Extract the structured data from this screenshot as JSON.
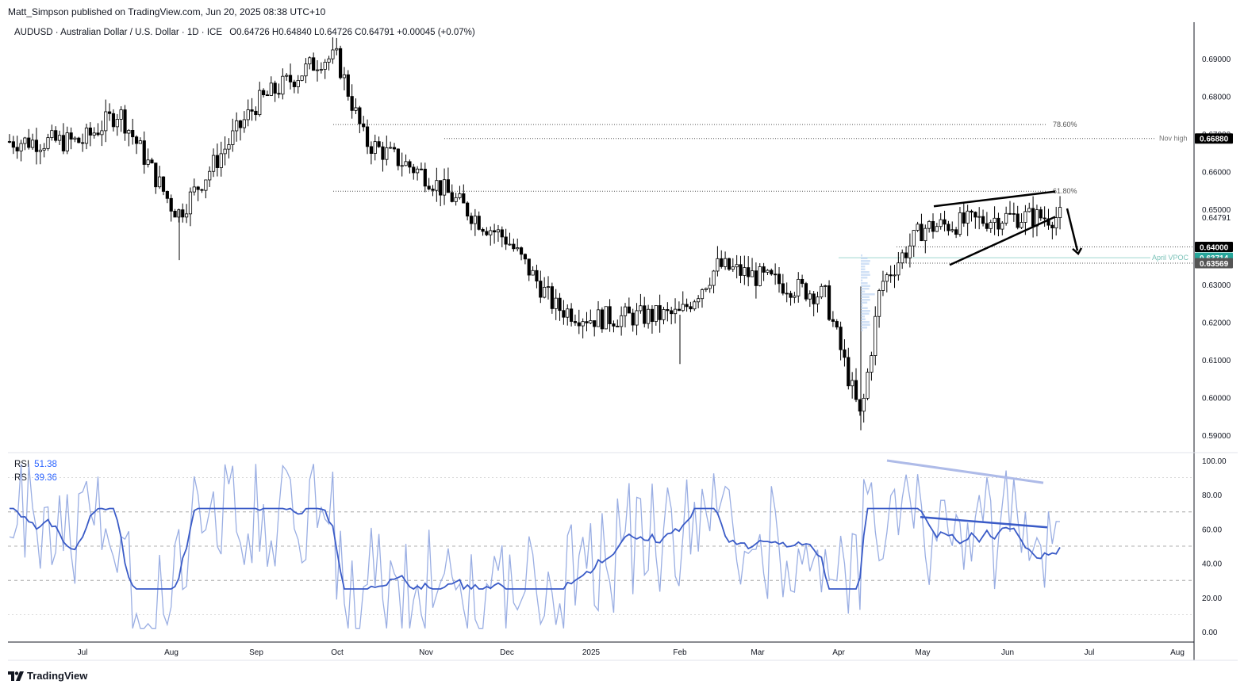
{
  "header": {
    "published": "Matt_Simpson published on TradingView.com, Jun 20, 2025 08:38 UTC+10",
    "symbol": "AUDUSD · Australian Dollar / U.S. Dollar · 1D · ICE",
    "ohlc": "O0.64726  H0.64840  L0.64726  C0.64791  +0.00045 (+0.07%)"
  },
  "rsi": {
    "label1": "RSI",
    "value1": "51.38",
    "label2": "RSI",
    "value2": "39.36"
  },
  "footer": {
    "brand": "TradingView",
    "logo_icon": "tradingview-logo-icon"
  },
  "colors": {
    "up": "#ffffff",
    "down": "#000000",
    "rsi_main": "#3a5bc7",
    "rsi_fast": "#9aaee3",
    "last_price_bg": "#000000",
    "vpoc_bg": "#26a69a",
    "level_bg": "#555555"
  },
  "price_axis": {
    "ticks": [
      "0.69000",
      "0.68000",
      "0.67000",
      "0.66000",
      "0.65000",
      "0.64000",
      "0.63000",
      "0.62000",
      "0.61000",
      "0.60000",
      "0.59000"
    ]
  },
  "labels": {
    "fib_786": "78.60%",
    "fib_618": "61.80%",
    "nov_high": "Nov high",
    "nov_high_value": "0.66880",
    "last_price": "0.64791",
    "level_0640": "0.64000",
    "april_vpoc": "April VPOC",
    "april_vpoc_value": "0.63714",
    "level_0636": "0.63569"
  },
  "rsi_axis": {
    "ticks": [
      "100.00",
      "80.00",
      "60.00",
      "40.00",
      "20.00",
      "0.00"
    ]
  },
  "time_axis": {
    "labels": [
      "Jul",
      "Aug",
      "Sep",
      "Oct",
      "Nov",
      "Dec",
      "2025",
      "Feb",
      "Mar",
      "Apr",
      "May",
      "Jun",
      "Jul",
      "Aug"
    ]
  },
  "chart_data": {
    "type": "candlestick",
    "title": "AUDUSD · Australian Dollar / U.S. Dollar · 1D · ICE",
    "ylim": [
      0.585,
      0.697
    ],
    "x_labels": [
      "Jul",
      "Aug",
      "Sep",
      "Oct",
      "Nov",
      "Dec",
      "2025",
      "Feb",
      "Mar",
      "Apr",
      "May",
      "Jun",
      "Jul",
      "Aug"
    ],
    "approx_close_path": [
      {
        "x": "Jun 2024 end",
        "y": 0.668
      },
      {
        "x": "Jul",
        "y": 0.668
      },
      {
        "x": "mid Jul",
        "y": 0.676
      },
      {
        "x": "Aug",
        "y": 0.651
      },
      {
        "x": "early Aug",
        "y": 0.649
      },
      {
        "x": "Sep",
        "y": 0.678
      },
      {
        "x": "late Sep",
        "y": 0.69
      },
      {
        "x": "Oct",
        "y": 0.69
      },
      {
        "x": "mid Oct",
        "y": 0.668
      },
      {
        "x": "Nov",
        "y": 0.659
      },
      {
        "x": "mid Nov",
        "y": 0.646
      },
      {
        "x": "Dec",
        "y": 0.642
      },
      {
        "x": "mid Dec",
        "y": 0.624
      },
      {
        "x": "2025",
        "y": 0.621
      },
      {
        "x": "Feb",
        "y": 0.622
      },
      {
        "x": "mid Feb",
        "y": 0.635
      },
      {
        "x": "Mar",
        "y": 0.632
      },
      {
        "x": "Apr",
        "y": 0.627
      },
      {
        "x": "Apr 8",
        "y": 0.594
      },
      {
        "x": "mid Apr",
        "y": 0.63
      },
      {
        "x": "May",
        "y": 0.645
      },
      {
        "x": "Jun",
        "y": 0.648
      },
      {
        "x": "Jun 19",
        "y": 0.6479
      }
    ],
    "levels": [
      {
        "name": "78.60%",
        "value": 0.6725
      },
      {
        "name": "Nov high",
        "value": 0.6688
      },
      {
        "name": "61.80%",
        "value": 0.6548
      },
      {
        "name": "0.64000",
        "value": 0.64
      },
      {
        "name": "April VPOC",
        "value": 0.63714
      },
      {
        "name": "0.63569",
        "value": 0.63569
      }
    ],
    "last": {
      "open": 0.64726,
      "high": 0.6484,
      "low": 0.64726,
      "close": 0.64791,
      "change": "+0.00045 (+0.07%)"
    },
    "rsi": {
      "ylim": [
        0,
        100
      ],
      "levels": [
        30,
        50,
        70
      ],
      "main_last": 51.38,
      "fast_last": 39.36
    }
  }
}
